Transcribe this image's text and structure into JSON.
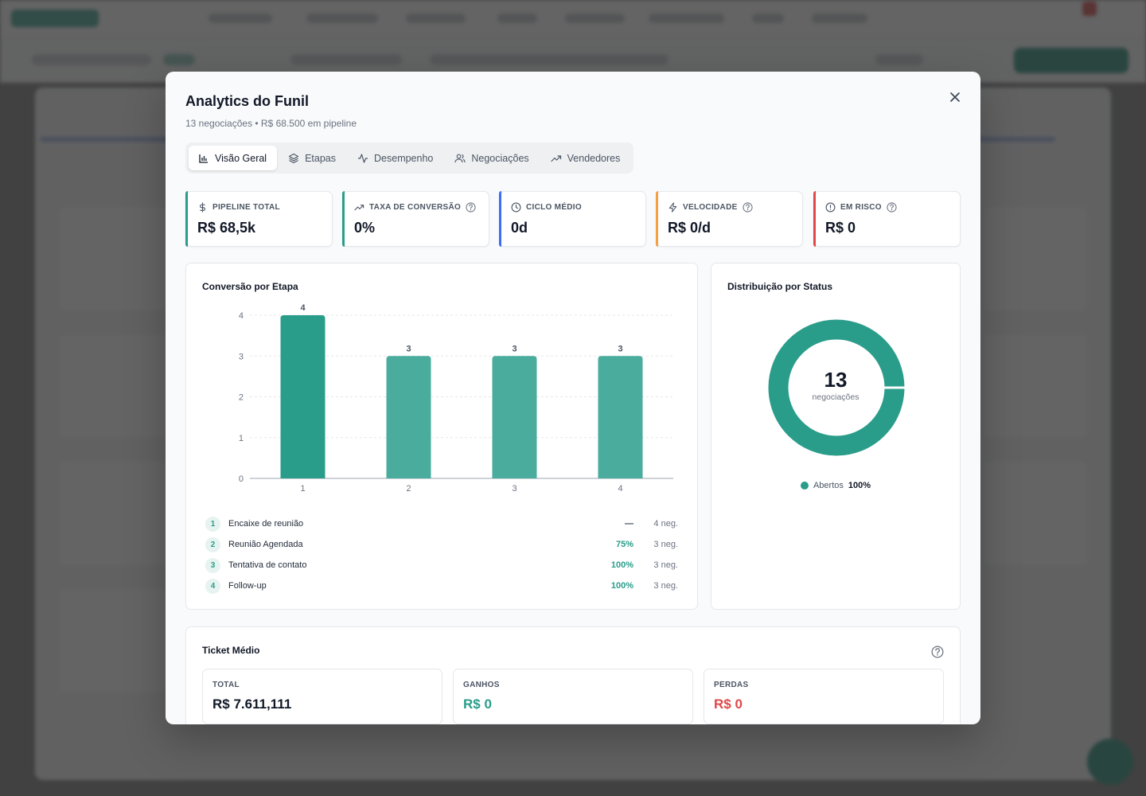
{
  "modal": {
    "title": "Analytics do Funil",
    "subtitle": "13 negociações • R$ 68.500 em pipeline"
  },
  "tabs": [
    {
      "label": "Visão Geral",
      "icon": "bar-chart-icon",
      "active": true
    },
    {
      "label": "Etapas",
      "icon": "layers-icon"
    },
    {
      "label": "Desempenho",
      "icon": "activity-icon"
    },
    {
      "label": "Negociações",
      "icon": "users-icon"
    },
    {
      "label": "Vendedores",
      "icon": "trending-up-icon"
    }
  ],
  "kpis": [
    {
      "label": "Pipeline Total",
      "value": "R$ 68,5k",
      "icon": "dollar-icon",
      "color": "#2a9d8a",
      "help": false
    },
    {
      "label": "Taxa de Conversão",
      "value": "0%",
      "icon": "trending-up-icon",
      "color": "#2a9d8a",
      "help": true
    },
    {
      "label": "Ciclo Médio",
      "value": "0d",
      "icon": "clock-icon",
      "color": "#3b6ef5",
      "help": false
    },
    {
      "label": "Velocidade",
      "value": "R$ 0/d",
      "icon": "zap-icon",
      "color": "#f59e42",
      "help": true
    },
    {
      "label": "Em Risco",
      "value": "R$ 0",
      "icon": "alert-circle-icon",
      "color": "#e04848",
      "help": true
    }
  ],
  "conversion": {
    "title": "Conversão por Etapa",
    "stages": [
      {
        "num": "1",
        "name": "Encaixe de reunião",
        "rate": "—",
        "neg": "4 neg."
      },
      {
        "num": "2",
        "name": "Reunião Agendada",
        "rate": "75%",
        "neg": "3 neg."
      },
      {
        "num": "3",
        "name": "Tentativa de contato",
        "rate": "100%",
        "neg": "3 neg."
      },
      {
        "num": "4",
        "name": "Follow-up",
        "rate": "100%",
        "neg": "3 neg."
      }
    ]
  },
  "chart_data": {
    "type": "bar",
    "categories": [
      "1",
      "2",
      "3",
      "4"
    ],
    "values": [
      4,
      3,
      3,
      3
    ],
    "title": "Conversão por Etapa",
    "xlabel": "",
    "ylabel": "",
    "ylim": [
      0,
      4
    ],
    "yticks": [
      "0",
      "1",
      "2",
      "3",
      "4"
    ],
    "grid": true,
    "colors": [
      "#2a9d8a",
      "#4aac9d",
      "#4aac9d",
      "#4aac9d"
    ]
  },
  "status": {
    "title": "Distribuição por Status",
    "center_value": "13",
    "center_label": "negociações",
    "legend": [
      {
        "label": "Abertos",
        "value": "100%",
        "color": "#2a9d8a"
      }
    ],
    "chart_data": {
      "type": "pie",
      "labels": [
        "Abertos"
      ],
      "values": [
        100
      ],
      "colors": [
        "#2a9d8a"
      ]
    }
  },
  "ticket": {
    "title": "Ticket Médio",
    "cards": [
      {
        "label": "TOTAL",
        "value": "R$ 7.611,111",
        "color": "#111827"
      },
      {
        "label": "GANHOS",
        "value": "R$ 0",
        "color": "#2a9d8a"
      },
      {
        "label": "PERDAS",
        "value": "R$ 0",
        "color": "#e04848"
      }
    ]
  }
}
